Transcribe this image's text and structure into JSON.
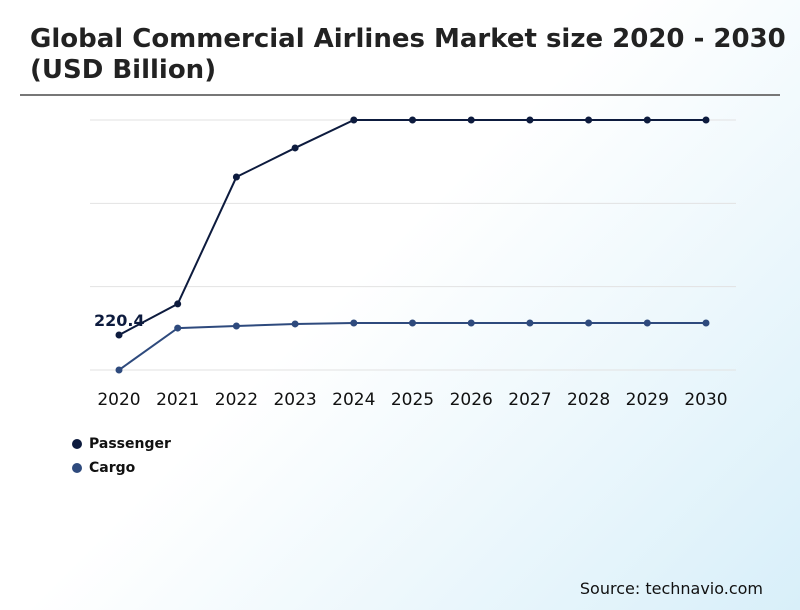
{
  "chart_data": {
    "type": "line",
    "title": "Global Commercial Airlines Market size 2020 - 2030 (USD Billion)",
    "x": [
      "2020",
      "2021",
      "2022",
      "2023",
      "2024",
      "2025",
      "2026",
      "2027",
      "2028",
      "2029",
      "2030"
    ],
    "ylim": [
      0,
      1574
    ],
    "grid": true,
    "legend": "bottom-left",
    "series": [
      {
        "name": "Passenger",
        "color": "#0d1b3e",
        "values": [
          220.4,
          416,
          1215,
          1398,
          1574,
          1574,
          1574,
          1574,
          1574,
          1574,
          1574
        ]
      },
      {
        "name": "Cargo",
        "color": "#2e4a7d",
        "values": [
          0,
          264,
          277,
          290,
          296,
          296,
          296,
          296,
          296,
          296,
          296
        ]
      }
    ],
    "annotations": [
      {
        "label": "220.4"
      }
    ]
  },
  "source": "Source: technavio.com"
}
